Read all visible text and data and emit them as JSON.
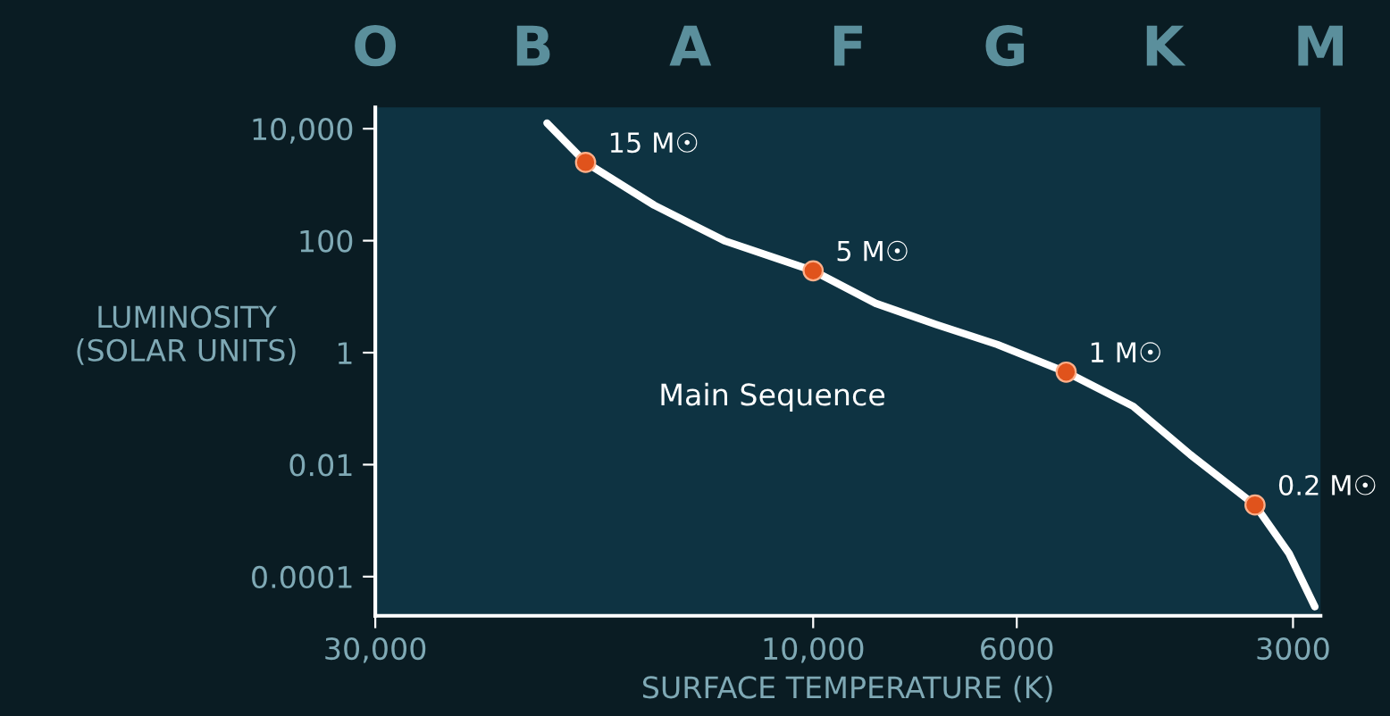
{
  "chart_data": {
    "type": "line",
    "xlabel": "SURFACE TEMPERATURE (K)",
    "ylabel": "LUMINOSITY\n(SOLAR UNITS)",
    "log": "xy",
    "xlim": [
      30000,
      2800
    ],
    "ylim": [
      2e-05,
      24000
    ],
    "xticks": [
      {
        "value": 30000,
        "label": "30,000"
      },
      {
        "value": 10000,
        "label": "10,000"
      },
      6000,
      3000
    ],
    "yticks": [
      {
        "value": 10000,
        "label": "10,000"
      },
      100,
      1,
      0.01,
      0.0001
    ],
    "grid": false,
    "legend": false,
    "annotations": [
      "O",
      "B",
      "A",
      "F",
      "G",
      "K",
      "M",
      "Main Sequence",
      {
        "text": "15 M☉",
        "x": 17700,
        "y": 2500
      },
      {
        "text": "5 M☉",
        "x": 10000,
        "y": 29
      },
      {
        "text": "1 M☉",
        "x": 5300,
        "y": 0.45
      },
      {
        "text": "0.2 M☉",
        "x": 3300,
        "y": 0.0019
      }
    ],
    "series": [
      {
        "color": "#ffffff",
        "line_style": "solid",
        "marker": "none",
        "x": [
          19500,
          17700,
          14900,
          12500,
          10000,
          8550,
          7350,
          6300,
          5300,
          4480,
          3880,
          3300,
          3030,
          2840
        ],
        "values": [
          12600,
          2500,
          430,
          100,
          29,
          7.6,
          3.2,
          1.4,
          0.45,
          0.11,
          0.015,
          0.0019,
          0.00026,
          2.9e-05
        ]
      },
      {
        "type": "scatter",
        "color": "#e0531c",
        "marker": "circle",
        "x": [
          17700,
          10000,
          5300,
          3300
        ],
        "values": [
          2500,
          29,
          0.45,
          0.0019
        ]
      }
    ]
  }
}
